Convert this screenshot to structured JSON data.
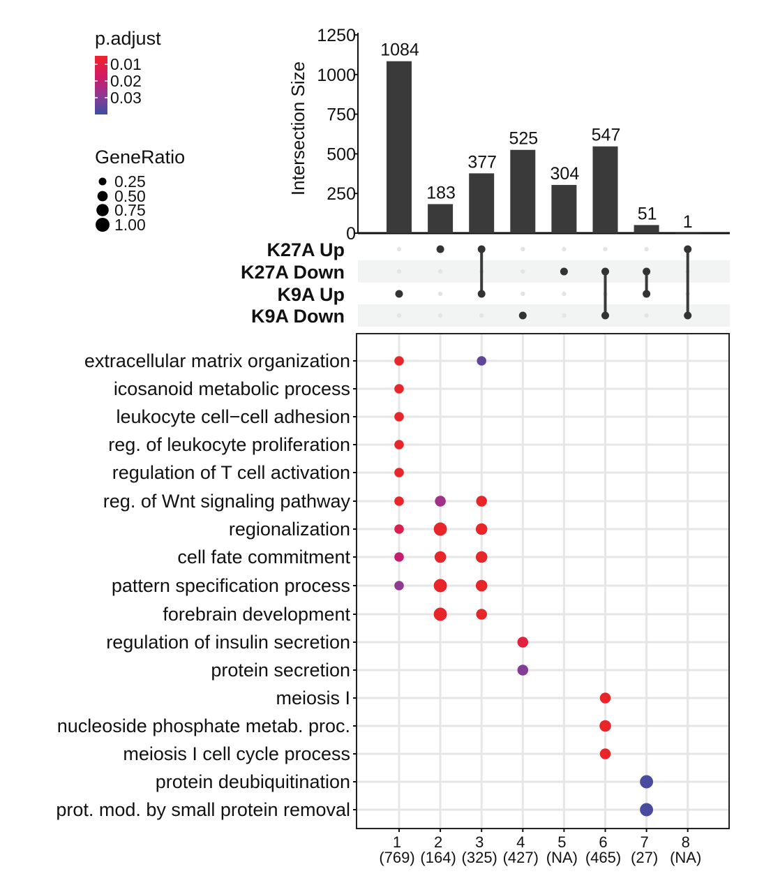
{
  "chart_data": {
    "type": "upset-dotplot",
    "bar_chart": {
      "ylabel": "Intersection Size",
      "yticks": [
        0,
        250,
        500,
        750,
        1000,
        1250
      ],
      "ylim": [
        0,
        1250
      ],
      "values": [
        1084,
        183,
        377,
        525,
        304,
        547,
        51,
        1
      ],
      "value_labels": [
        "1084",
        "183",
        "377",
        "525",
        "304",
        "547",
        "51",
        "1"
      ],
      "bar_color": "#3a3a3a"
    },
    "sets": [
      "K27A Up",
      "K27A Down",
      "K9A Up",
      "K9A Down"
    ],
    "intersections": [
      {
        "id": "1",
        "count_label": "(769)",
        "members": [
          2
        ]
      },
      {
        "id": "2",
        "count_label": "(164)",
        "members": [
          0
        ]
      },
      {
        "id": "3",
        "count_label": "(325)",
        "members": [
          0,
          2
        ]
      },
      {
        "id": "4",
        "count_label": "(427)",
        "members": [
          3
        ]
      },
      {
        "id": "5",
        "count_label": "(NA)",
        "members": [
          1
        ]
      },
      {
        "id": "6",
        "count_label": "(465)",
        "members": [
          1,
          3
        ]
      },
      {
        "id": "7",
        "count_label": "(27)",
        "members": [
          1,
          2
        ]
      },
      {
        "id": "8",
        "count_label": "(NA)",
        "members": [
          0,
          3
        ]
      }
    ],
    "terms": [
      "extracellular matrix organization",
      "icosanoid metabolic process",
      "leukocyte cell−cell adhesion",
      "reg. of leukocyte proliferation",
      "regulation of T cell activation",
      "reg. of Wnt signaling pathway",
      "regionalization",
      "cell fate commitment",
      "pattern specification process",
      "forebrain development",
      "regulation of insulin secretion",
      "protein secretion",
      "meiosis I",
      "nucleoside phosphate metab. proc.",
      "meiosis I cell cycle process",
      "protein deubiquitination",
      "prot. mod. by small protein removal"
    ],
    "dots": [
      {
        "term": 0,
        "col": 1,
        "gene_ratio": 0.25,
        "p_adjust": 0.005
      },
      {
        "term": 0,
        "col": 3,
        "gene_ratio": 0.25,
        "p_adjust": 0.035
      },
      {
        "term": 1,
        "col": 1,
        "gene_ratio": 0.25,
        "p_adjust": 0.005
      },
      {
        "term": 2,
        "col": 1,
        "gene_ratio": 0.25,
        "p_adjust": 0.005
      },
      {
        "term": 3,
        "col": 1,
        "gene_ratio": 0.25,
        "p_adjust": 0.005
      },
      {
        "term": 4,
        "col": 1,
        "gene_ratio": 0.25,
        "p_adjust": 0.005
      },
      {
        "term": 5,
        "col": 1,
        "gene_ratio": 0.25,
        "p_adjust": 0.005
      },
      {
        "term": 5,
        "col": 2,
        "gene_ratio": 0.4,
        "p_adjust": 0.025
      },
      {
        "term": 5,
        "col": 3,
        "gene_ratio": 0.4,
        "p_adjust": 0.005
      },
      {
        "term": 6,
        "col": 1,
        "gene_ratio": 0.25,
        "p_adjust": 0.012
      },
      {
        "term": 6,
        "col": 2,
        "gene_ratio": 0.75,
        "p_adjust": 0.005
      },
      {
        "term": 6,
        "col": 3,
        "gene_ratio": 0.5,
        "p_adjust": 0.005
      },
      {
        "term": 7,
        "col": 1,
        "gene_ratio": 0.25,
        "p_adjust": 0.018
      },
      {
        "term": 7,
        "col": 2,
        "gene_ratio": 0.5,
        "p_adjust": 0.005
      },
      {
        "term": 7,
        "col": 3,
        "gene_ratio": 0.5,
        "p_adjust": 0.005
      },
      {
        "term": 8,
        "col": 1,
        "gene_ratio": 0.25,
        "p_adjust": 0.028
      },
      {
        "term": 8,
        "col": 2,
        "gene_ratio": 0.75,
        "p_adjust": 0.005
      },
      {
        "term": 8,
        "col": 3,
        "gene_ratio": 0.5,
        "p_adjust": 0.005
      },
      {
        "term": 9,
        "col": 2,
        "gene_ratio": 0.75,
        "p_adjust": 0.005
      },
      {
        "term": 9,
        "col": 3,
        "gene_ratio": 0.4,
        "p_adjust": 0.005
      },
      {
        "term": 10,
        "col": 4,
        "gene_ratio": 0.4,
        "p_adjust": 0.009
      },
      {
        "term": 11,
        "col": 4,
        "gene_ratio": 0.4,
        "p_adjust": 0.03
      },
      {
        "term": 12,
        "col": 6,
        "gene_ratio": 0.4,
        "p_adjust": 0.005
      },
      {
        "term": 13,
        "col": 6,
        "gene_ratio": 0.5,
        "p_adjust": 0.005
      },
      {
        "term": 14,
        "col": 6,
        "gene_ratio": 0.4,
        "p_adjust": 0.005
      },
      {
        "term": 15,
        "col": 7,
        "gene_ratio": 0.75,
        "p_adjust": 0.038
      },
      {
        "term": 16,
        "col": 7,
        "gene_ratio": 0.75,
        "p_adjust": 0.038
      }
    ],
    "legend": {
      "p_adjust_title": "p.adjust",
      "p_adjust_labels": [
        "0.01",
        "0.02",
        "0.03"
      ],
      "p_adjust_values": [
        0.01,
        0.02,
        0.03
      ],
      "p_adjust_range": [
        0.005,
        0.04
      ],
      "p_adjust_colors": [
        "#e8262a",
        "#d0186a",
        "#8e3a92",
        "#3b4fa0"
      ],
      "gene_ratio_title": "GeneRatio",
      "gene_ratio_labels": [
        "0.25",
        "0.50",
        "0.75",
        "1.00"
      ],
      "gene_ratio_values": [
        0.25,
        0.5,
        0.75,
        1.0
      ]
    }
  }
}
